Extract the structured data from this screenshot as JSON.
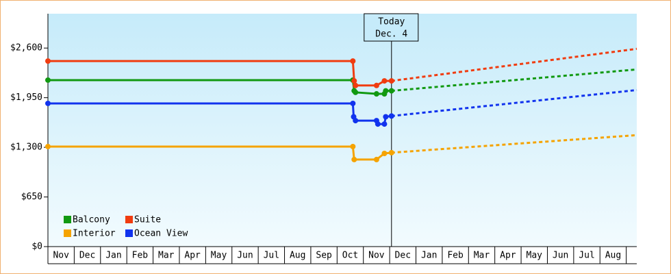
{
  "chart_data": {
    "type": "line",
    "xlim": [
      0,
      22.4
    ],
    "ylim": [
      0,
      3050
    ],
    "yticks": [
      {
        "value": 0,
        "label": "$0"
      },
      {
        "value": 650,
        "label": "$650"
      },
      {
        "value": 1300,
        "label": "$1,300"
      },
      {
        "value": 1950,
        "label": "$1,950"
      },
      {
        "value": 2600,
        "label": "$2,600"
      }
    ],
    "categories": [
      "Nov",
      "Dec",
      "Jan",
      "Feb",
      "Mar",
      "Apr",
      "May",
      "Jun",
      "Jul",
      "Aug",
      "Sep",
      "Oct",
      "Nov",
      "Dec",
      "Jan",
      "Feb",
      "Mar",
      "Apr",
      "May",
      "Jun",
      "Jul",
      "Aug"
    ],
    "legend": "lower left",
    "annotation": {
      "x": 13.07,
      "title": "Today",
      "date": "Dec. 4"
    },
    "series": [
      {
        "name": "Balcony",
        "color": "#119911",
        "x": [
          0,
          11.6,
          11.65,
          11.7,
          12.5,
          12.8,
          12.85,
          13.07
        ],
        "values": [
          2180,
          2180,
          2040,
          2020,
          2000,
          2000,
          2040,
          2040
        ],
        "forecast": {
          "x": [
            13.07,
            22.4
          ],
          "values": [
            2040,
            2320
          ]
        }
      },
      {
        "name": "Suite",
        "color": "#f03c10",
        "x": [
          0,
          11.6,
          11.65,
          11.7,
          12.5,
          12.8,
          13.07
        ],
        "values": [
          2430,
          2430,
          2170,
          2110,
          2110,
          2170,
          2170
        ],
        "forecast": {
          "x": [
            13.07,
            22.4
          ],
          "values": [
            2170,
            2590
          ]
        }
      },
      {
        "name": "Interior",
        "color": "#f5a300",
        "x": [
          0,
          11.6,
          11.65,
          12.5,
          12.8,
          13.07
        ],
        "values": [
          1310,
          1310,
          1140,
          1140,
          1220,
          1230
        ],
        "forecast": {
          "x": [
            13.07,
            22.4
          ],
          "values": [
            1230,
            1460
          ]
        }
      },
      {
        "name": "Ocean View",
        "color": "#1133ee",
        "x": [
          0,
          11.6,
          11.63,
          11.7,
          12.5,
          12.55,
          12.8,
          12.85,
          13.07
        ],
        "values": [
          1875,
          1875,
          1700,
          1650,
          1650,
          1605,
          1605,
          1700,
          1710
        ],
        "forecast": {
          "x": [
            13.07,
            22.4
          ],
          "values": [
            1710,
            2050
          ]
        }
      }
    ]
  }
}
